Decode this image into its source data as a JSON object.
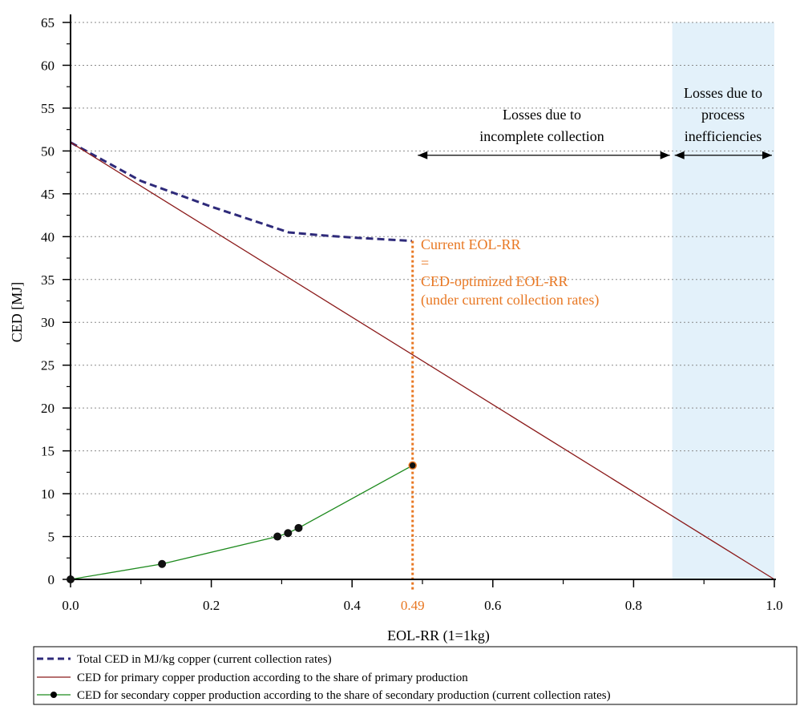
{
  "chart_data": {
    "type": "line",
    "title": "",
    "xlabel": "EOL-RR (1=1kg)",
    "ylabel": "CED [MJ]",
    "xlim": [
      0,
      1.0
    ],
    "ylim": [
      0,
      65
    ],
    "x_ticks": [
      0.0,
      0.2,
      0.4,
      0.6,
      0.8,
      1.0
    ],
    "x_tick_labels": [
      "0.0",
      "0.2",
      "0.4",
      "0.6",
      "0.8",
      "1.0"
    ],
    "y_ticks": [
      0,
      5,
      10,
      15,
      20,
      25,
      30,
      35,
      40,
      45,
      50,
      55,
      60,
      65
    ],
    "y_tick_labels": [
      "0",
      "5",
      "10",
      "15",
      "20",
      "25",
      "30",
      "35",
      "40",
      "45",
      "50",
      "55",
      "60",
      "65"
    ],
    "grid": "horizontal-dotted",
    "legend_position": "bottom",
    "series": [
      {
        "key": "total",
        "name": "Total CED in MJ/kg copper (current collection rates)",
        "style": "dashed",
        "color": "#2e2a7a",
        "x": [
          0.0,
          0.1,
          0.2,
          0.31,
          0.35,
          0.4,
          0.485
        ],
        "y": [
          51,
          46.5,
          43.5,
          40.5,
          40.2,
          39.9,
          39.5
        ]
      },
      {
        "key": "primary",
        "name": "CED for primary copper production according to the share of primary production",
        "style": "solid",
        "color": "#8b1a1a",
        "x": [
          0.0,
          1.0
        ],
        "y": [
          51,
          0
        ]
      },
      {
        "key": "secondary",
        "name": "CED for secondary copper production according to the share of  secondary production (current collection rates)",
        "style": "solid-markers",
        "color": "#1e8a1e",
        "x": [
          0.0,
          0.13,
          0.294,
          0.309,
          0.324,
          0.486
        ],
        "y": [
          0,
          1.8,
          5.0,
          5.4,
          6.0,
          13.3
        ]
      }
    ],
    "shaded_region": {
      "x_from": 0.855,
      "x_to": 1.0,
      "color": "#e3f1fa"
    },
    "vertical_marker": {
      "x": 0.486,
      "y_top": 39.5,
      "label": "0.49",
      "color": "#e87722"
    },
    "annotations": {
      "current_eol": [
        "Current EOL-RR",
        "=",
        "CED-optimized EOL-RR",
        "(under current collection rates)"
      ],
      "losses_collection": [
        "Losses due to",
        "incomplete collection"
      ],
      "losses_process": [
        "Losses due to",
        "process",
        "inefficiencies"
      ]
    },
    "arrows": [
      {
        "key": "collection",
        "x_from": 0.49,
        "x_to": 0.855,
        "y": 49.5
      },
      {
        "key": "process",
        "x_from": 0.855,
        "x_to": 1.0,
        "y": 49.5
      }
    ]
  }
}
